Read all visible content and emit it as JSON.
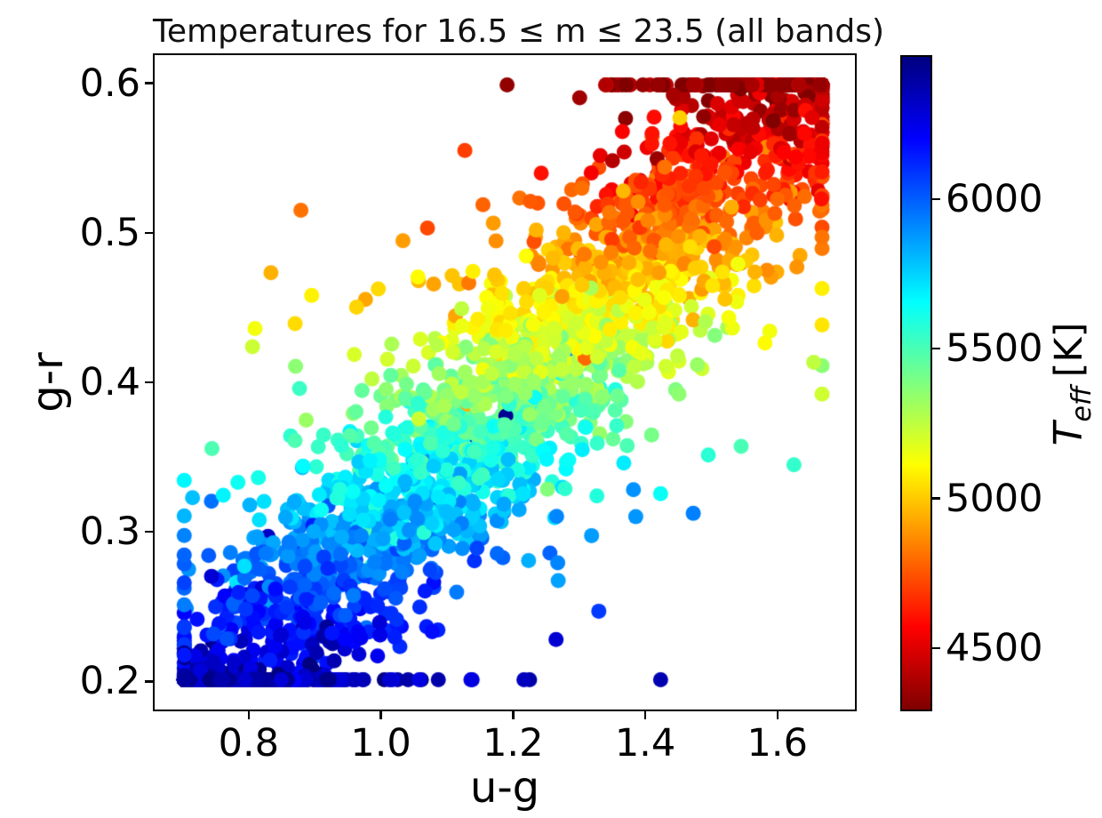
{
  "figure": {
    "background": "#ffffff"
  },
  "chart_data": {
    "type": "scatter",
    "title": "Temperatures for 16.5 ≤ m ≤ 23.5 (all bands)",
    "xlabel": "u-g",
    "ylabel": "g-r",
    "xlim": [
      0.655,
      1.72
    ],
    "ylim": [
      0.18,
      0.62
    ],
    "xtick_values": [
      0.8,
      1.0,
      1.2,
      1.4,
      1.6
    ],
    "xtick_labels": [
      "0.8",
      "1.0",
      "1.2",
      "1.4",
      "1.6"
    ],
    "ytick_values": [
      0.6,
      0.5,
      0.4,
      0.3,
      0.2
    ],
    "ytick_labels": [
      "0.6",
      "0.5",
      "0.4",
      "0.3",
      "0.2"
    ],
    "grid": false,
    "legend": "none",
    "marker": {
      "shape": "circle",
      "radius_px": 8.5,
      "opacity": 1.0
    },
    "colormap": "jet_r",
    "colormap_stops_top_to_bottom": [
      "#000080",
      "#0000ff",
      "#00ffff",
      "#80ff80",
      "#ffff00",
      "#ff0000",
      "#800000"
    ],
    "colorbar": {
      "label_math_symbol": "T",
      "label_subscript": "eff",
      "label_units": "[K]",
      "tick_values": [
        6000,
        5500,
        5000,
        4500
      ],
      "tick_labels": [
        "6000",
        "5500",
        "5000",
        "4500"
      ],
      "vmin": 4290,
      "vmax": 6480
    },
    "points": {
      "note": "Dense scatter of several thousand stars; individual values estimated from pixels. g-r rises roughly linearly with u-g from (0.70, 0.20) to (1.67, 0.60); T_eff is ~6480 K (dark blue) at the blue/lower-left end and ~4290 K (dark red) at the red/upper-right end, decreasing ~500 K per 0.1 mag in g-r.",
      "count": 3000,
      "x_range": [
        0.7,
        1.67
      ],
      "y_range": [
        0.2,
        0.6
      ],
      "generator": {
        "seed": 20240613,
        "y_mean": 0.38,
        "y_sd": 0.16,
        "x_intercept": 0.78,
        "x_slope": 2.15,
        "x_noise_sd_core": 0.09,
        "x_noise_sd_tail": 0.22,
        "tail_fraction": 0.15,
        "temp_at_ymin": 6350,
        "temp_slope": -5000,
        "temp_noise_sd": 85,
        "temp_outlier_fraction": 0.02,
        "temp_outlier_sd": 380
      }
    }
  }
}
